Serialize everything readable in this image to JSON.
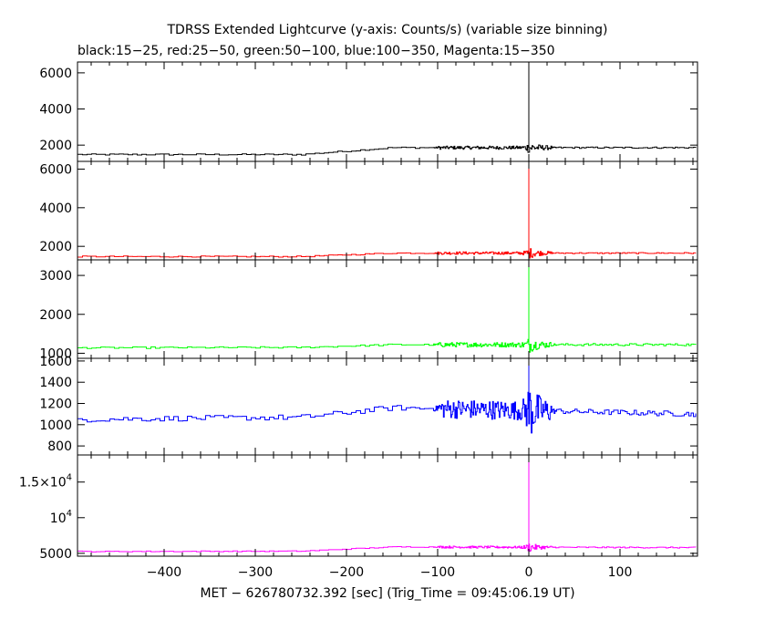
{
  "chart_data": {
    "type": "line",
    "title": "TDRSS Extended Lightcurve (y-axis: Counts/s) (variable size binning)",
    "subtitle": "black:15−25, red:25−50, green:50−100, blue:100−350, Magenta:15−350",
    "xlabel": "MET − 626780732.392 [sec] (Trig_Time = 09:45:06.19 UT)",
    "xlim": [
      -495,
      185
    ],
    "x_ticks": [
      -400,
      -300,
      -200,
      -100,
      0,
      100
    ],
    "x_tick_labels": [
      "−400",
      "−300",
      "−200",
      "−100",
      "0",
      "100"
    ],
    "grid": false,
    "legend": "none",
    "panels": [
      {
        "name": "black:15−25",
        "color": "#000000",
        "ylim": [
          1100,
          6600
        ],
        "y_ticks": [
          2000,
          4000,
          6000
        ],
        "y_tick_labels": [
          "2000",
          "4000",
          "6000"
        ],
        "profile": [
          [
            -495,
            1480
          ],
          [
            -250,
            1480
          ],
          [
            -150,
            1860
          ],
          [
            185,
            1860
          ]
        ],
        "noise_regions": [
          [
            -490,
            -100,
            40
          ],
          [
            -100,
            -10,
            90
          ],
          [
            -10,
            25,
            350
          ],
          [
            25,
            185,
            40
          ]
        ],
        "spike": {
          "x": 0,
          "y": 6600
        }
      },
      {
        "name": "red:25−50",
        "color": "#ff0000",
        "ylim": [
          1300,
          6400
        ],
        "y_ticks": [
          2000,
          4000,
          6000
        ],
        "y_tick_labels": [
          "2000",
          "4000",
          "6000"
        ],
        "profile": [
          [
            -495,
            1470
          ],
          [
            -250,
            1470
          ],
          [
            -150,
            1650
          ],
          [
            185,
            1650
          ]
        ],
        "noise_regions": [
          [
            -490,
            -100,
            30
          ],
          [
            -100,
            -10,
            70
          ],
          [
            -10,
            25,
            300
          ],
          [
            25,
            185,
            30
          ]
        ],
        "spike": {
          "x": 0,
          "y": 6400
        }
      },
      {
        "name": "green:50−100",
        "color": "#00ff00",
        "ylim": [
          870,
          3400
        ],
        "y_ticks": [
          1000,
          2000,
          3000
        ],
        "y_tick_labels": [
          "1000",
          "2000",
          "3000"
        ],
        "profile": [
          [
            -495,
            1140
          ],
          [
            -250,
            1150
          ],
          [
            -150,
            1220
          ],
          [
            185,
            1220
          ]
        ],
        "noise_regions": [
          [
            -490,
            -100,
            20
          ],
          [
            -100,
            -10,
            60
          ],
          [
            -10,
            25,
            220
          ],
          [
            25,
            185,
            30
          ]
        ],
        "spike": {
          "x": 0,
          "y": 3400
        }
      },
      {
        "name": "blue:100−350",
        "color": "#0000ff",
        "ylim": [
          715,
          1625
        ],
        "y_ticks": [
          800,
          1000,
          1200,
          1400,
          1600
        ],
        "y_tick_labels": [
          "800",
          "1000",
          "1200",
          "1400",
          "1600"
        ],
        "profile": [
          [
            -495,
            1050
          ],
          [
            -250,
            1070
          ],
          [
            -150,
            1160
          ],
          [
            185,
            1100
          ]
        ],
        "noise_regions": [
          [
            -490,
            -100,
            25
          ],
          [
            -100,
            -10,
            90
          ],
          [
            -10,
            25,
            300
          ],
          [
            25,
            185,
            25
          ]
        ],
        "spike": {
          "x": 0,
          "y": 1625
        }
      },
      {
        "name": "Magenta:15−350",
        "color": "#ff00ff",
        "ylim": [
          4600,
          18800
        ],
        "y_ticks": [
          5000,
          10000,
          15000
        ],
        "y_tick_labels": [
          {
            "text": "5000"
          },
          {
            "base": "10",
            "exp": "4"
          },
          {
            "base": "1.5×10",
            "exp": "4"
          }
        ],
        "profile": [
          [
            -495,
            5250
          ],
          [
            -250,
            5300
          ],
          [
            -150,
            5900
          ],
          [
            185,
            5800
          ]
        ],
        "noise_regions": [
          [
            -490,
            -100,
            60
          ],
          [
            -100,
            -10,
            150
          ],
          [
            -10,
            25,
            700
          ],
          [
            25,
            185,
            80
          ]
        ],
        "spike": {
          "x": 0,
          "y": 18800
        }
      }
    ]
  }
}
